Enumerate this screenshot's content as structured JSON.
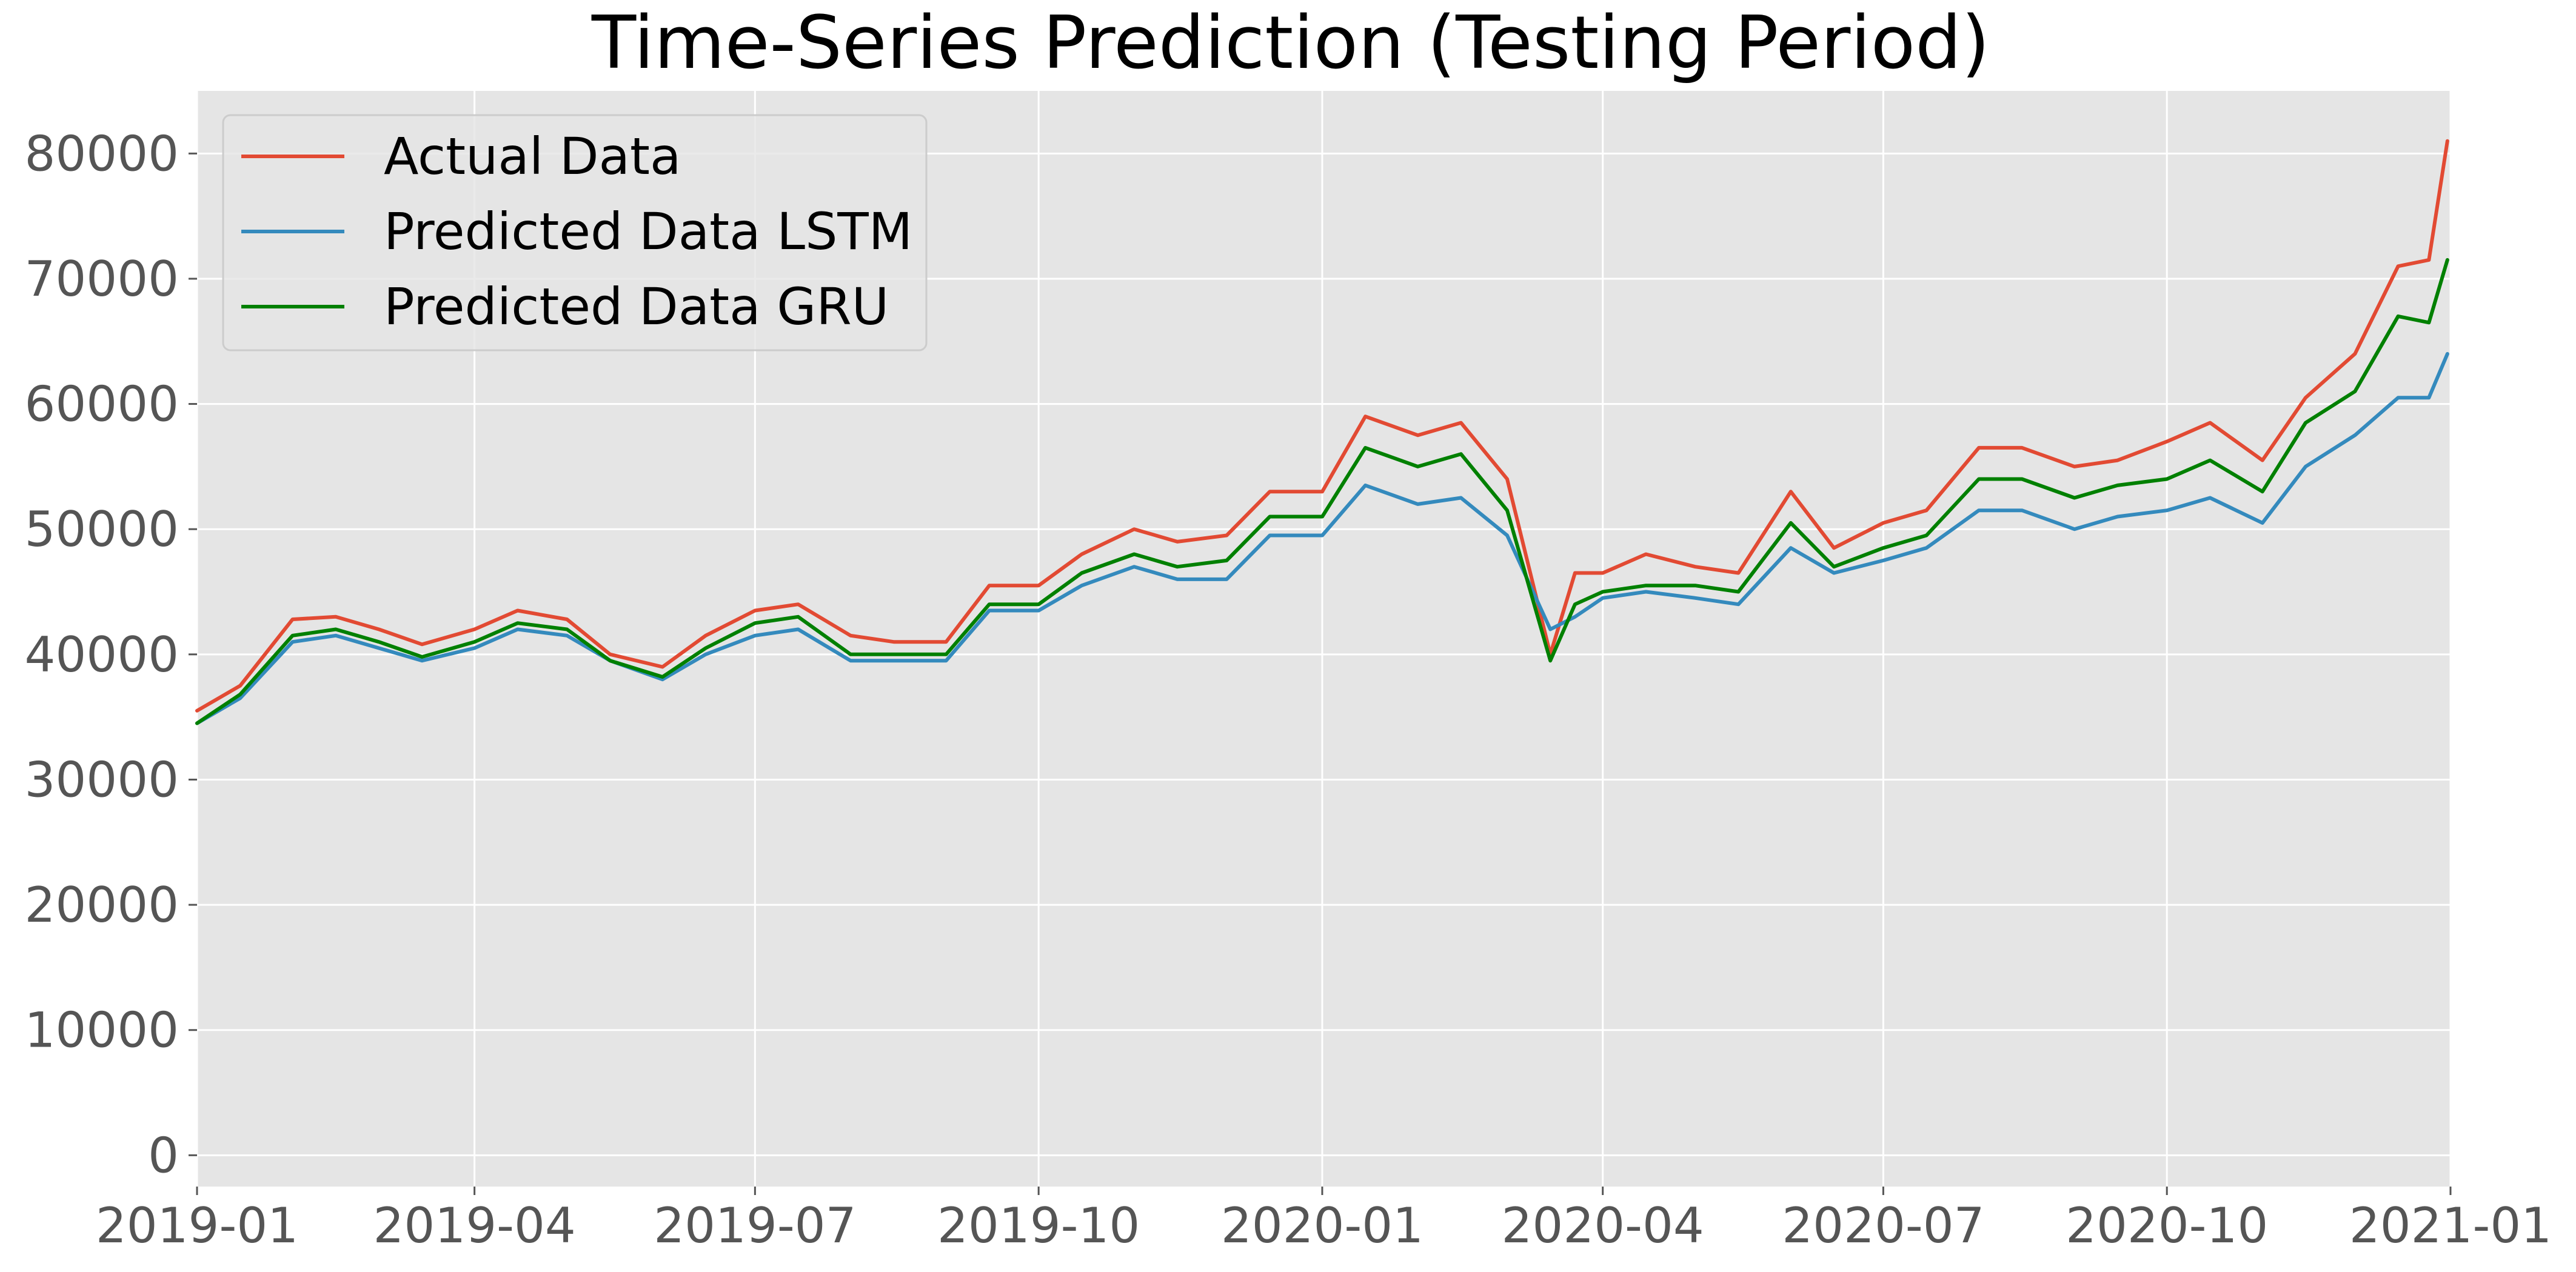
{
  "chart_data": {
    "type": "line",
    "title": "Time-Series Prediction (Testing Period)",
    "xlabel": "",
    "ylabel": "",
    "x_range": [
      "2019-01-01",
      "2021-01-01"
    ],
    "ylim": [
      -2500,
      85000
    ],
    "grid": true,
    "legend_position": "top-left",
    "x_ticks": [
      "2019-01",
      "2019-04",
      "2019-07",
      "2019-10",
      "2020-01",
      "2020-04",
      "2020-07",
      "2020-10",
      "2021-01"
    ],
    "y_ticks": [
      0,
      10000,
      20000,
      30000,
      40000,
      50000,
      60000,
      70000,
      80000
    ],
    "x": [
      "2019-01-01",
      "2019-01-15",
      "2019-02-01",
      "2019-02-15",
      "2019-03-01",
      "2019-03-15",
      "2019-04-01",
      "2019-04-15",
      "2019-05-01",
      "2019-05-15",
      "2019-06-01",
      "2019-06-15",
      "2019-07-01",
      "2019-07-15",
      "2019-08-01",
      "2019-08-15",
      "2019-09-01",
      "2019-09-15",
      "2019-10-01",
      "2019-10-15",
      "2019-11-01",
      "2019-11-15",
      "2019-12-01",
      "2019-12-15",
      "2020-01-01",
      "2020-01-15",
      "2020-02-01",
      "2020-02-15",
      "2020-03-01",
      "2020-03-15",
      "2020-03-23",
      "2020-04-01",
      "2020-04-15",
      "2020-05-01",
      "2020-05-15",
      "2020-06-01",
      "2020-06-15",
      "2020-07-01",
      "2020-07-15",
      "2020-08-01",
      "2020-08-15",
      "2020-09-01",
      "2020-09-15",
      "2020-10-01",
      "2020-10-15",
      "2020-11-01",
      "2020-11-15",
      "2020-12-01",
      "2020-12-15",
      "2020-12-25",
      "2020-12-31"
    ],
    "series": [
      {
        "name": "Actual Data",
        "color": "#E24A33",
        "values": [
          35500,
          37500,
          42800,
          43000,
          42000,
          40800,
          42000,
          43500,
          42800,
          40000,
          39000,
          41500,
          43500,
          44000,
          41500,
          41000,
          41000,
          45500,
          45500,
          48000,
          50000,
          49000,
          49500,
          53000,
          53000,
          59000,
          57500,
          58500,
          54000,
          40000,
          46500,
          46500,
          48000,
          47000,
          46500,
          53000,
          48500,
          50500,
          51500,
          56500,
          56500,
          55000,
          55500,
          57000,
          58500,
          55500,
          60500,
          64000,
          71000,
          71500,
          81000
        ]
      },
      {
        "name": "Predicted Data LSTM",
        "color": "#348ABD",
        "values": [
          34500,
          36500,
          41000,
          41500,
          40500,
          39500,
          40500,
          42000,
          41500,
          39500,
          38000,
          40000,
          41500,
          42000,
          39500,
          39500,
          39500,
          43500,
          43500,
          45500,
          47000,
          46000,
          46000,
          49500,
          49500,
          53500,
          52000,
          52500,
          49500,
          42000,
          43000,
          44500,
          45000,
          44500,
          44000,
          48500,
          46500,
          47500,
          48500,
          51500,
          51500,
          50000,
          51000,
          51500,
          52500,
          50500,
          55000,
          57500,
          60500,
          60500,
          64000
        ]
      },
      {
        "name": "Predicted Data GRU",
        "color": "#008000",
        "values": [
          34500,
          36800,
          41500,
          42000,
          41000,
          39800,
          41000,
          42500,
          42000,
          39500,
          38200,
          40500,
          42500,
          43000,
          40000,
          40000,
          40000,
          44000,
          44000,
          46500,
          48000,
          47000,
          47500,
          51000,
          51000,
          56500,
          55000,
          56000,
          51500,
          39500,
          44000,
          45000,
          45500,
          45500,
          45000,
          50500,
          47000,
          48500,
          49500,
          54000,
          54000,
          52500,
          53500,
          54000,
          55500,
          53000,
          58500,
          61000,
          67000,
          66500,
          71500
        ]
      }
    ]
  }
}
